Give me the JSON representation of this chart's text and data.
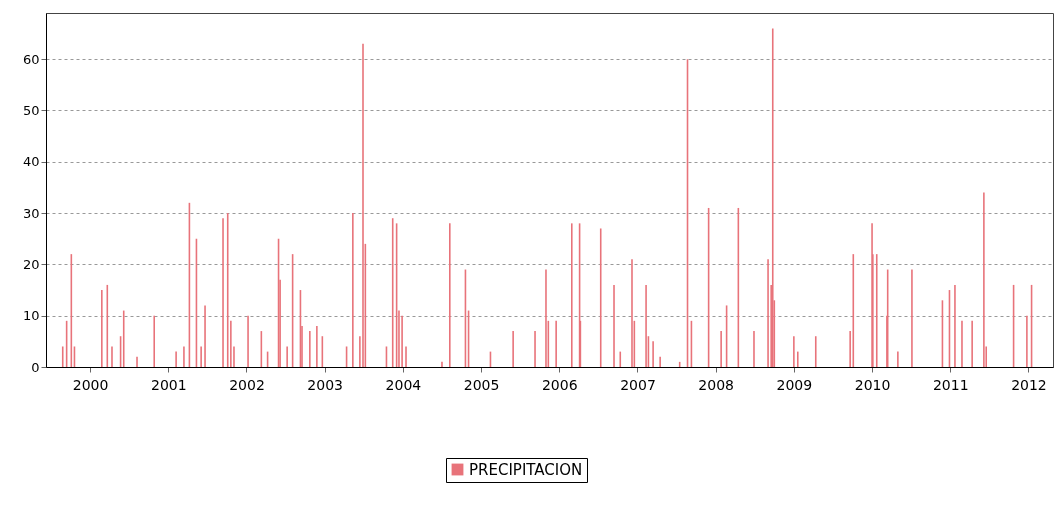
{
  "chart_data": {
    "type": "bar",
    "x": [
      1999.65,
      1999.7,
      1999.76,
      1999.8,
      2000.15,
      2000.22,
      2000.28,
      2000.39,
      2000.43,
      2000.6,
      2000.82,
      2001.1,
      2001.2,
      2001.27,
      2001.36,
      2001.42,
      2001.47,
      2001.7,
      2001.76,
      2001.8,
      2001.84,
      2002.02,
      2002.19,
      2002.27,
      2002.41,
      2002.43,
      2002.52,
      2002.59,
      2002.69,
      2002.71,
      2002.81,
      2002.9,
      2002.97,
      2003.28,
      2003.36,
      2003.45,
      2003.49,
      2003.52,
      2003.79,
      2003.87,
      2003.92,
      2003.95,
      2003.99,
      2004.04,
      2004.5,
      2004.6,
      2004.8,
      2004.84,
      2005.12,
      2005.41,
      2005.69,
      2005.83,
      2005.86,
      2005.96,
      2006.16,
      2006.26,
      2006.27,
      2006.53,
      2006.7,
      2006.78,
      2006.93,
      2006.96,
      2007.11,
      2007.14,
      2007.2,
      2007.29,
      2007.54,
      2007.64,
      2007.69,
      2007.91,
      2008.07,
      2008.14,
      2008.29,
      2008.49,
      2008.67,
      2008.71,
      2008.73,
      2008.75,
      2009.0,
      2009.05,
      2009.28,
      2009.72,
      2009.76,
      2010.0,
      2010.01,
      2010.06,
      2010.19,
      2010.2,
      2010.33,
      2010.51,
      2010.9,
      2010.99,
      2011.06,
      2011.15,
      2011.28,
      2011.43,
      2011.46,
      2011.81,
      2011.98,
      2012.04
    ],
    "series": [
      {
        "name": "PRECIPITACION",
        "color": "#e8737a",
        "values": [
          4,
          9,
          22,
          4,
          15,
          16,
          4,
          6,
          11,
          2,
          10,
          3,
          4,
          32,
          25,
          4,
          12,
          29,
          30,
          9,
          4,
          10,
          7,
          3,
          25,
          17,
          4,
          22,
          15,
          8,
          7,
          8,
          6,
          4,
          30,
          6,
          63,
          24,
          4,
          29,
          28,
          11,
          10,
          4,
          1,
          28,
          19,
          11,
          3,
          7,
          7,
          19,
          9,
          9,
          28,
          28,
          9,
          27,
          16,
          3,
          21,
          9,
          16,
          6,
          5,
          2,
          1,
          60,
          9,
          31,
          7,
          12,
          31,
          7,
          21,
          16,
          66,
          13,
          6,
          3,
          6,
          7,
          22,
          28,
          22,
          22,
          10,
          19,
          3,
          19,
          13,
          15,
          16,
          9,
          9,
          34,
          4,
          16,
          10,
          16
        ]
      }
    ],
    "xlim": [
      1999.5,
      2012.25
    ],
    "xticks": [
      2000,
      2001,
      2002,
      2003,
      2004,
      2005,
      2006,
      2007,
      2008,
      2009,
      2010,
      2011,
      2012
    ],
    "ylim": [
      0,
      69
    ],
    "yticks": [
      0,
      10,
      20,
      30,
      40,
      50,
      60
    ],
    "grid": "y",
    "legend": "bottom"
  }
}
